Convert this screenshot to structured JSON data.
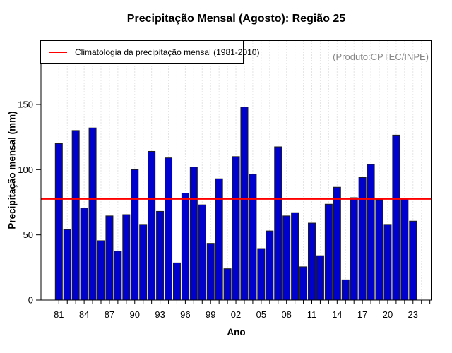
{
  "title": "Precipitação Mensal (Agosto): Região 25",
  "produto_note": "(Produto:CPTEC/INPE)",
  "legend": {
    "label": "Climatologia da precipitação mensal (1981-2010)",
    "line_color": "#ff0000"
  },
  "chart_data": {
    "type": "bar",
    "title": "Precipitação Mensal (Agosto): Região 25",
    "xlabel": "Ano",
    "ylabel": "Precipitação mensal (mm)",
    "categories": [
      1981,
      1982,
      1983,
      1984,
      1985,
      1986,
      1987,
      1988,
      1989,
      1990,
      1991,
      1992,
      1993,
      1994,
      1995,
      1996,
      1997,
      1998,
      1999,
      2000,
      2001,
      2002,
      2003,
      2004,
      2005,
      2006,
      2007,
      2008,
      2009,
      2010,
      2011,
      2012,
      2013,
      2014,
      2015,
      2016,
      2017,
      2018,
      2019,
      2020,
      2021,
      2022,
      2023
    ],
    "values": [
      120,
      54,
      130,
      70.5,
      132,
      45.5,
      64.5,
      37.5,
      65.5,
      100,
      58,
      114,
      68,
      109,
      28.5,
      82,
      102,
      73,
      43.5,
      93,
      24,
      110,
      148,
      96.5,
      39.5,
      53,
      117.5,
      64.5,
      67,
      25.5,
      59,
      34,
      73.5,
      86.5,
      15.5,
      78.5,
      94,
      104,
      77,
      58,
      126.5,
      77.5,
      60.5
    ],
    "climatology_value": 77.5,
    "ylim": [
      0,
      199
    ],
    "yticks": [
      0,
      50,
      100,
      150
    ],
    "xticks": [
      {
        "year": 1981,
        "label": "81"
      },
      {
        "year": 1984,
        "label": "84"
      },
      {
        "year": 1987,
        "label": "87"
      },
      {
        "year": 1990,
        "label": "90"
      },
      {
        "year": 1993,
        "label": "93"
      },
      {
        "year": 1996,
        "label": "96"
      },
      {
        "year": 1999,
        "label": "99"
      },
      {
        "year": 2002,
        "label": "02"
      },
      {
        "year": 2005,
        "label": "05"
      },
      {
        "year": 2008,
        "label": "08"
      },
      {
        "year": 2011,
        "label": "11"
      },
      {
        "year": 2014,
        "label": "14"
      },
      {
        "year": 2017,
        "label": "17"
      },
      {
        "year": 2020,
        "label": "20"
      },
      {
        "year": 2023,
        "label": "23"
      }
    ],
    "grid": "vertical-dotted",
    "grid_color": "#c9c9c9",
    "bar_color": "#0101cd",
    "bar_border_color": "#1c1c1c",
    "climatology_color": "#ff0000",
    "axis_color": "#000000",
    "legend_position": "top-left-inside",
    "x_range_years": [
      1980,
      2025
    ]
  }
}
